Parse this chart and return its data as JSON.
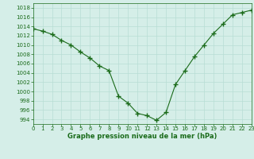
{
  "x": [
    0,
    1,
    2,
    3,
    4,
    5,
    6,
    7,
    8,
    9,
    10,
    11,
    12,
    13,
    14,
    15,
    16,
    17,
    18,
    19,
    20,
    21,
    22,
    23
  ],
  "y": [
    1013.5,
    1013.0,
    1012.3,
    1011.0,
    1010.0,
    1008.5,
    1007.2,
    1005.5,
    1004.5,
    999.0,
    997.5,
    995.3,
    994.8,
    993.8,
    995.5,
    1001.5,
    1004.5,
    1007.5,
    1010.0,
    1012.5,
    1014.5,
    1016.5,
    1017.0,
    1017.5
  ],
  "line_color": "#1a6b1a",
  "marker": "+",
  "background_color": "#d5eee8",
  "grid_color": "#b8ddd4",
  "xlabel": "Graphe pression niveau de la mer (hPa)",
  "xlabel_color": "#1a6b1a",
  "tick_color": "#1a6b1a",
  "ylim": [
    993,
    1019
  ],
  "xlim": [
    0,
    23
  ],
  "yticks": [
    994,
    996,
    998,
    1000,
    1002,
    1004,
    1006,
    1008,
    1010,
    1012,
    1014,
    1016,
    1018
  ],
  "xticks": [
    0,
    1,
    2,
    3,
    4,
    5,
    6,
    7,
    8,
    9,
    10,
    11,
    12,
    13,
    14,
    15,
    16,
    17,
    18,
    19,
    20,
    21,
    22,
    23
  ],
  "figsize": [
    3.2,
    2.0
  ],
  "dpi": 100
}
